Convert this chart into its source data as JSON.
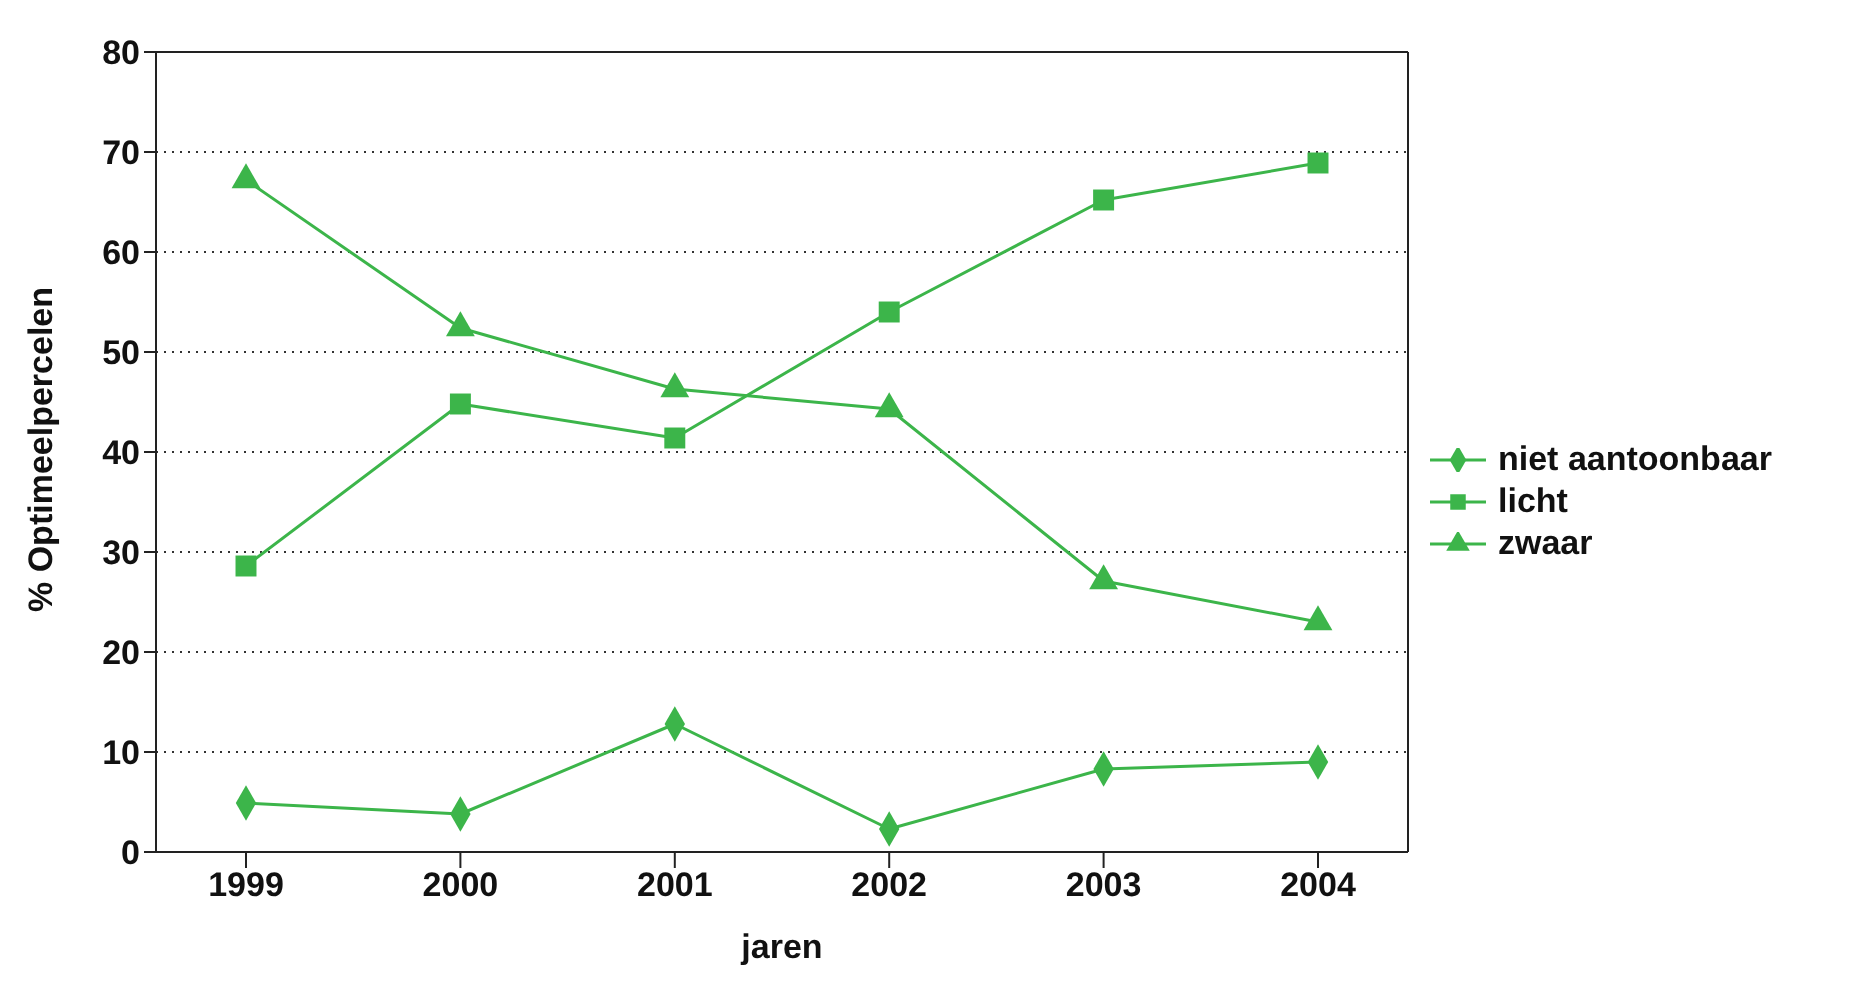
{
  "chart_data": {
    "type": "line",
    "xlabel": "jaren",
    "ylabel": "% Optimeelpercelen",
    "categories": [
      "1999",
      "2000",
      "2001",
      "2002",
      "2003",
      "2004"
    ],
    "series": [
      {
        "name": "niet aantoonbaar",
        "color": "#3cb54a",
        "marker": "diamond",
        "values": [
          4.9,
          3.8,
          12.8,
          2.3,
          8.3,
          9.0
        ]
      },
      {
        "name": "licht",
        "color": "#3cb54a",
        "marker": "square",
        "values": [
          28.6,
          44.8,
          41.4,
          54.0,
          65.2,
          68.9
        ]
      },
      {
        "name": "zwaar",
        "color": "#3cb54a",
        "marker": "triangle",
        "values": [
          67.2,
          52.4,
          46.3,
          44.3,
          27.1,
          23.0
        ]
      }
    ],
    "ylim": [
      0,
      80
    ],
    "yticks": [
      0,
      10,
      20,
      30,
      40,
      50,
      60,
      70,
      80
    ],
    "grid": "y",
    "legend": "right",
    "line_style": "solid"
  }
}
